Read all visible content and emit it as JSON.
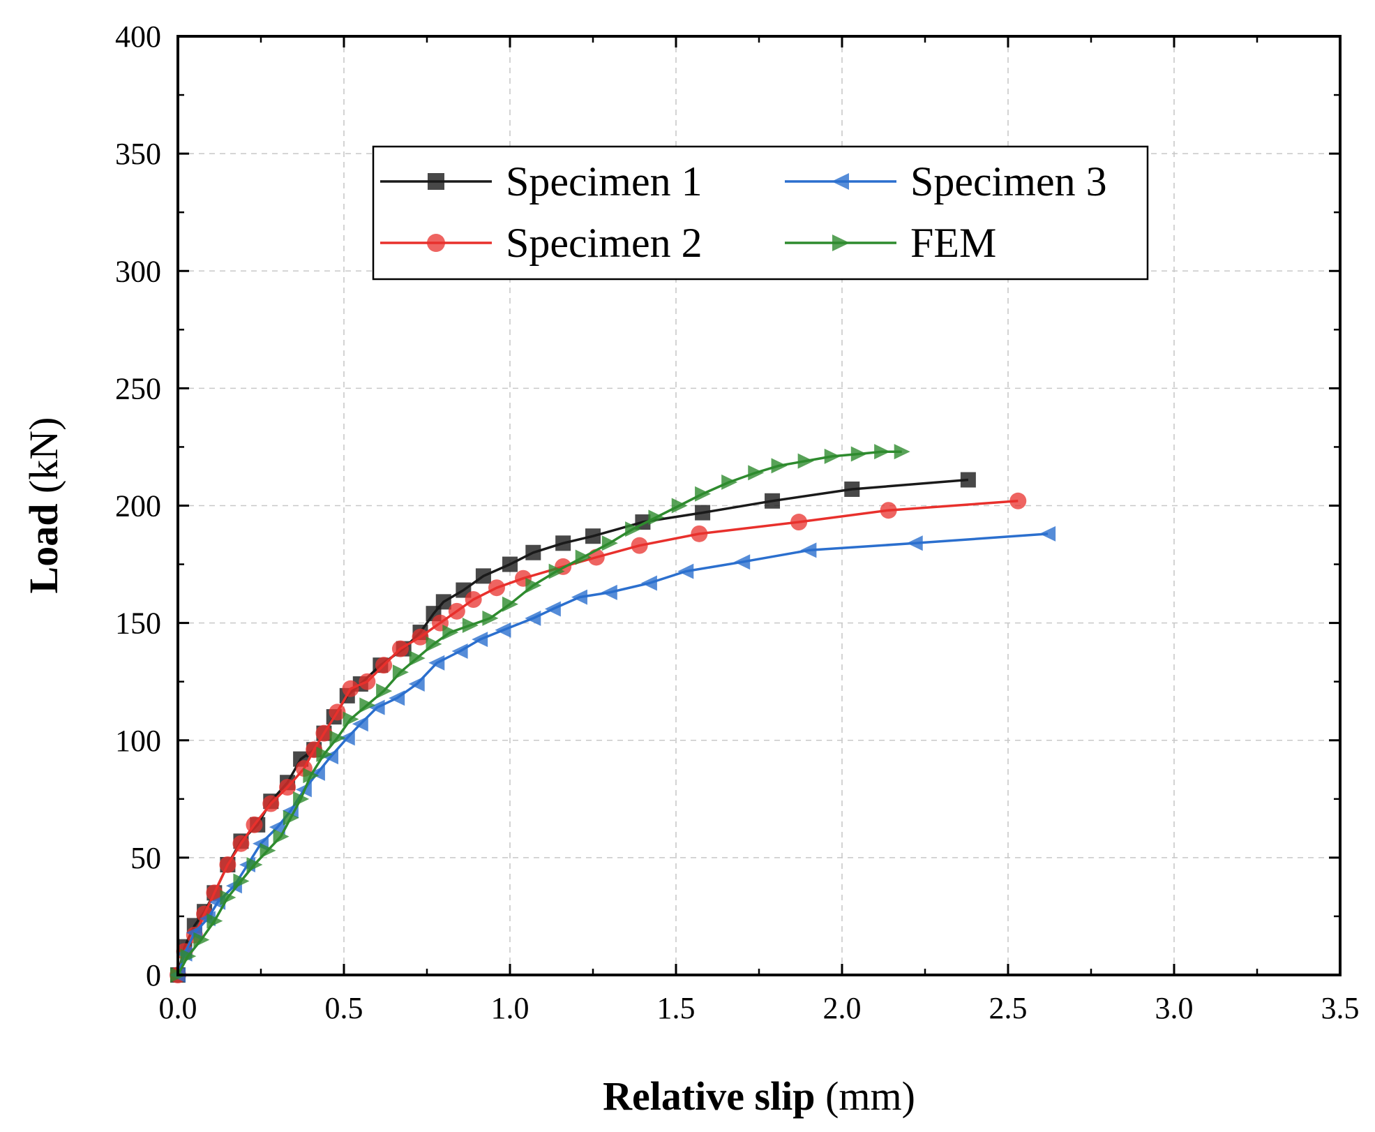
{
  "chart_data": {
    "type": "line",
    "title": "",
    "xlabel": "Relative slip (mm)",
    "xlabel_parts": [
      "Relative slip",
      " (mm)"
    ],
    "ylabel": "Load (kN)",
    "ylabel_parts": [
      "Load",
      " (kN)"
    ],
    "xlim": [
      0,
      3.5
    ],
    "ylim": [
      0,
      400
    ],
    "xticks": [
      "0.0",
      "0.5",
      "1.0",
      "1.5",
      "2.0",
      "2.5",
      "3.0",
      "3.5"
    ],
    "yticks": [
      "0",
      "50",
      "100",
      "150",
      "200",
      "250",
      "300",
      "350",
      "400"
    ],
    "grid": true,
    "legend_position": "top-center",
    "series": [
      {
        "name": "Specimen 1",
        "color": "#1a1a1a",
        "marker": "square",
        "points": [
          [
            0,
            0
          ],
          [
            0.02,
            12
          ],
          [
            0.05,
            21
          ],
          [
            0.08,
            27
          ],
          [
            0.11,
            35
          ],
          [
            0.15,
            47
          ],
          [
            0.19,
            57
          ],
          [
            0.24,
            64
          ],
          [
            0.28,
            74
          ],
          [
            0.33,
            82
          ],
          [
            0.37,
            92
          ],
          [
            0.41,
            96
          ],
          [
            0.44,
            103
          ],
          [
            0.47,
            110
          ],
          [
            0.51,
            119
          ],
          [
            0.55,
            124
          ],
          [
            0.61,
            132
          ],
          [
            0.68,
            139
          ],
          [
            0.73,
            146
          ],
          [
            0.77,
            154
          ],
          [
            0.8,
            159
          ],
          [
            0.86,
            164
          ],
          [
            0.92,
            170
          ],
          [
            1.0,
            175
          ],
          [
            1.07,
            180
          ],
          [
            1.16,
            184
          ],
          [
            1.25,
            187
          ],
          [
            1.4,
            193
          ],
          [
            1.58,
            197
          ],
          [
            1.79,
            202
          ],
          [
            2.03,
            207
          ],
          [
            2.38,
            211
          ]
        ]
      },
      {
        "name": "Specimen 2",
        "color": "#e8302c",
        "marker": "circle",
        "points": [
          [
            0,
            0
          ],
          [
            0.02,
            10
          ],
          [
            0.05,
            17
          ],
          [
            0.08,
            26
          ],
          [
            0.11,
            35
          ],
          [
            0.15,
            47
          ],
          [
            0.19,
            56
          ],
          [
            0.23,
            64
          ],
          [
            0.28,
            73
          ],
          [
            0.33,
            80
          ],
          [
            0.38,
            88
          ],
          [
            0.41,
            96
          ],
          [
            0.44,
            103
          ],
          [
            0.48,
            112
          ],
          [
            0.52,
            122
          ],
          [
            0.57,
            125
          ],
          [
            0.62,
            132
          ],
          [
            0.67,
            139
          ],
          [
            0.73,
            144
          ],
          [
            0.79,
            150
          ],
          [
            0.84,
            155
          ],
          [
            0.89,
            160
          ],
          [
            0.96,
            165
          ],
          [
            1.04,
            169
          ],
          [
            1.16,
            174
          ],
          [
            1.26,
            178
          ],
          [
            1.39,
            183
          ],
          [
            1.57,
            188
          ],
          [
            1.87,
            193
          ],
          [
            2.14,
            198
          ],
          [
            2.53,
            202
          ]
        ]
      },
      {
        "name": "Specimen 3",
        "color": "#2b6fce",
        "marker": "triangle-left",
        "points": [
          [
            0,
            0
          ],
          [
            0.02,
            9
          ],
          [
            0.05,
            18
          ],
          [
            0.09,
            24
          ],
          [
            0.12,
            31
          ],
          [
            0.17,
            38
          ],
          [
            0.21,
            47
          ],
          [
            0.25,
            56
          ],
          [
            0.3,
            63
          ],
          [
            0.34,
            70
          ],
          [
            0.38,
            79
          ],
          [
            0.42,
            86
          ],
          [
            0.46,
            93
          ],
          [
            0.51,
            101
          ],
          [
            0.55,
            107
          ],
          [
            0.6,
            114
          ],
          [
            0.66,
            118
          ],
          [
            0.72,
            124
          ],
          [
            0.78,
            133
          ],
          [
            0.85,
            138
          ],
          [
            0.91,
            143
          ],
          [
            0.98,
            147
          ],
          [
            1.07,
            152
          ],
          [
            1.13,
            156
          ],
          [
            1.21,
            161
          ],
          [
            1.3,
            163
          ],
          [
            1.42,
            167
          ],
          [
            1.53,
            172
          ],
          [
            1.7,
            176
          ],
          [
            1.9,
            181
          ],
          [
            2.22,
            184
          ],
          [
            2.62,
            188
          ]
        ]
      },
      {
        "name": "FEM",
        "color": "#2e8b2e",
        "marker": "triangle-right",
        "points": [
          [
            0,
            0
          ],
          [
            0.03,
            8
          ],
          [
            0.07,
            15
          ],
          [
            0.11,
            23
          ],
          [
            0.15,
            33
          ],
          [
            0.19,
            40
          ],
          [
            0.23,
            47
          ],
          [
            0.27,
            53
          ],
          [
            0.31,
            59
          ],
          [
            0.34,
            67
          ],
          [
            0.37,
            75
          ],
          [
            0.4,
            85
          ],
          [
            0.44,
            94
          ],
          [
            0.48,
            101
          ],
          [
            0.52,
            109
          ],
          [
            0.57,
            115
          ],
          [
            0.62,
            121
          ],
          [
            0.67,
            129
          ],
          [
            0.72,
            135
          ],
          [
            0.77,
            141
          ],
          [
            0.82,
            146
          ],
          [
            0.88,
            149
          ],
          [
            0.94,
            152
          ],
          [
            1.0,
            158
          ],
          [
            1.07,
            166
          ],
          [
            1.14,
            172
          ],
          [
            1.22,
            178
          ],
          [
            1.3,
            184
          ],
          [
            1.37,
            190
          ],
          [
            1.44,
            195
          ],
          [
            1.51,
            200
          ],
          [
            1.58,
            205
          ],
          [
            1.66,
            210
          ],
          [
            1.74,
            214
          ],
          [
            1.81,
            217
          ],
          [
            1.89,
            219
          ],
          [
            1.97,
            221
          ],
          [
            2.05,
            222
          ],
          [
            2.12,
            223
          ],
          [
            2.18,
            223
          ]
        ]
      }
    ]
  }
}
